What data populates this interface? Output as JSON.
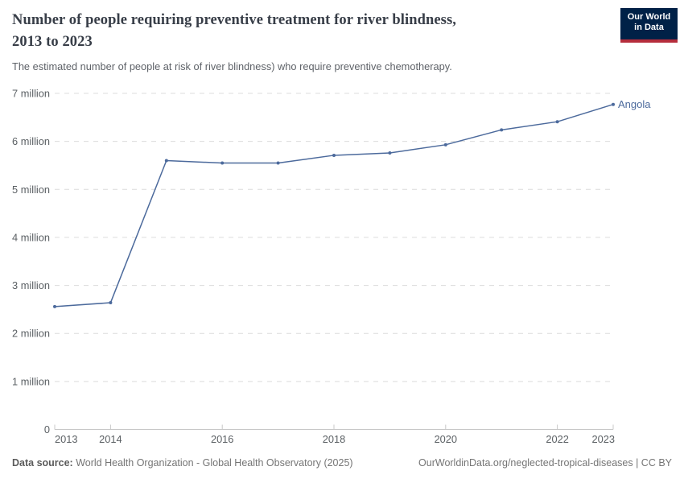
{
  "header": {
    "title_lines": [
      "Number of people requiring preventive treatment for river blindness,",
      "2013 to 2023"
    ],
    "subtitle": "The estimated number of people at risk of river blindness) who require preventive chemotherapy."
  },
  "logo": {
    "line1": "Our World",
    "line2": "in Data",
    "bg_color": "#002147",
    "bar_color": "#b52d3c"
  },
  "chart_data": {
    "type": "line",
    "title": "Number of people requiring preventive treatment for river blindness, 2013 to 2023",
    "x": [
      2013,
      2014,
      2015,
      2016,
      2017,
      2018,
      2019,
      2020,
      2021,
      2022,
      2023
    ],
    "series": [
      {
        "name": "Angola",
        "color": "#4c6a9c",
        "values": [
          2560000,
          2640000,
          5600000,
          5550000,
          5550000,
          5710000,
          5760000,
          5930000,
          6240000,
          6410000,
          6770000
        ]
      }
    ],
    "ylim": [
      0,
      7000000
    ],
    "yticks": [
      {
        "value": 0,
        "label": "0"
      },
      {
        "value": 1000000,
        "label": "1 million"
      },
      {
        "value": 2000000,
        "label": "2 million"
      },
      {
        "value": 3000000,
        "label": "3 million"
      },
      {
        "value": 4000000,
        "label": "4 million"
      },
      {
        "value": 5000000,
        "label": "5 million"
      },
      {
        "value": 6000000,
        "label": "6 million"
      },
      {
        "value": 7000000,
        "label": "7 million"
      }
    ],
    "xtick_years": [
      2013,
      2014,
      2016,
      2018,
      2020,
      2022,
      2023
    ],
    "grid": "horizontal-dashed",
    "legend_position": "end-of-line-label"
  },
  "footer": {
    "source_label": "Data source:",
    "source_text": " World Health Organization - Global Health Observatory (2025)",
    "link_text": "OurWorldinData.org/neglected-tropical-diseases | CC BY"
  },
  "colors": {
    "line": "#4c6a9c",
    "grid": "#dcdcdc",
    "axis": "#c8c8c8",
    "tick_text": "#5b6064",
    "title_text": "#383e48",
    "subtitle_text": "#5e6268",
    "footer_text": "#757575"
  }
}
